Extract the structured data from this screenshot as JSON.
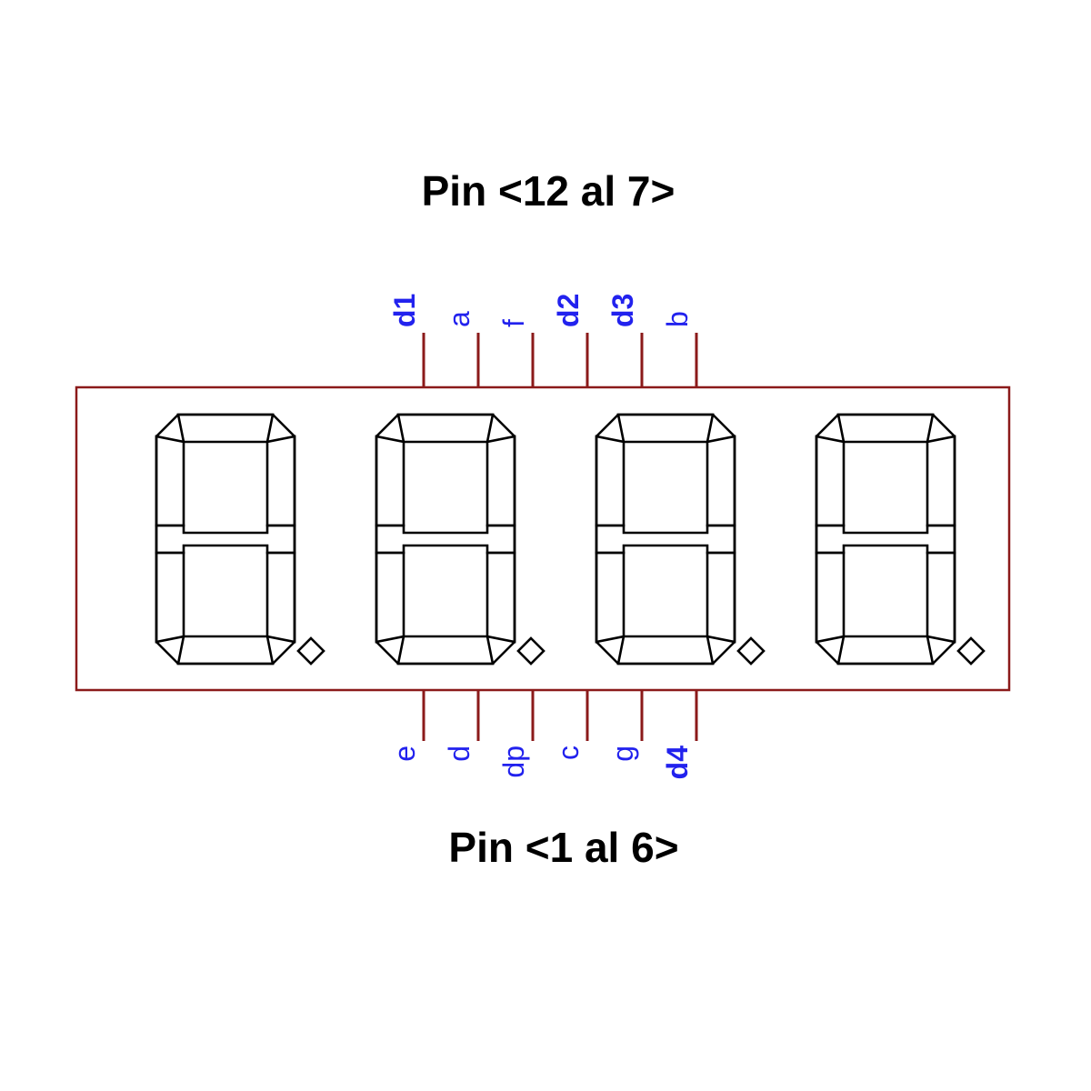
{
  "top_heading": "Pin <12 al 7>",
  "bottom_heading": "Pin <1 al 6>",
  "colors": {
    "body_outline": "#8b1a1a",
    "pin_line": "#8b1a1a",
    "pin_label": "#2222ee",
    "segments": "#000000"
  },
  "top_pins": [
    {
      "label": "d1",
      "bold": true
    },
    {
      "label": "a",
      "bold": false
    },
    {
      "label": "f",
      "bold": false
    },
    {
      "label": "d2",
      "bold": true
    },
    {
      "label": "d3",
      "bold": true
    },
    {
      "label": "b",
      "bold": false
    }
  ],
  "bottom_pins": [
    {
      "label": "e",
      "bold": false
    },
    {
      "label": "d",
      "bold": false
    },
    {
      "label": "dp",
      "bold": false
    },
    {
      "label": "c",
      "bold": false
    },
    {
      "label": "g",
      "bold": false
    },
    {
      "label": "d4",
      "bold": true
    }
  ],
  "digits": [
    {
      "segments": [
        "a",
        "b",
        "c",
        "d",
        "e",
        "f",
        "g"
      ],
      "decimal_point": true
    },
    {
      "segments": [
        "a",
        "b",
        "c",
        "d",
        "e",
        "f",
        "g"
      ],
      "decimal_point": true
    },
    {
      "segments": [
        "a",
        "b",
        "c",
        "d",
        "e",
        "f",
        "g"
      ],
      "decimal_point": true
    },
    {
      "segments": [
        "a",
        "b",
        "c",
        "d",
        "e",
        "f",
        "g"
      ],
      "decimal_point": true
    }
  ]
}
